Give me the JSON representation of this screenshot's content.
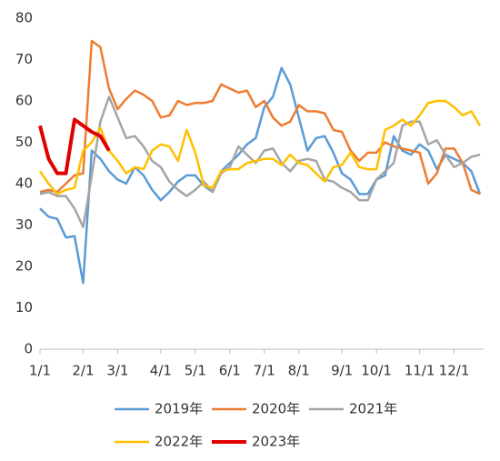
{
  "chart_data": {
    "type": "line",
    "categories": [
      "1/1",
      null,
      null,
      null,
      null,
      "2/1",
      null,
      null,
      null,
      "3/1",
      null,
      null,
      null,
      null,
      "4/1",
      null,
      null,
      null,
      "5/1",
      null,
      null,
      null,
      "6/1",
      null,
      null,
      null,
      "7/1",
      null,
      null,
      null,
      "8/1",
      null,
      null,
      null,
      null,
      "9/1",
      null,
      null,
      null,
      "10/1",
      null,
      null,
      null,
      null,
      "11/1",
      null,
      null,
      null,
      "12/1",
      null,
      null,
      null
    ],
    "series": [
      {
        "name": "2019年",
        "color": "#5b9bd5",
        "values": [
          34,
          32,
          31.5,
          27,
          27.3,
          16,
          48,
          46,
          43,
          41,
          40,
          44,
          42,
          38.5,
          36,
          38,
          40.5,
          42,
          42,
          39.5,
          38,
          43,
          45,
          47,
          49.5,
          51,
          58.5,
          61,
          68,
          64,
          56,
          48,
          51,
          51.5,
          47.5,
          42.5,
          41,
          37.5,
          37.5,
          41,
          42,
          51.5,
          48,
          47,
          49.5,
          48,
          43.5,
          47,
          46,
          45,
          43,
          37.5
        ]
      },
      {
        "name": "2020年",
        "color": "#ed7d31",
        "values": [
          38,
          38.5,
          38,
          40,
          42,
          42.5,
          74.5,
          73,
          63,
          58,
          60.5,
          62.5,
          61.5,
          60,
          56,
          56.5,
          60,
          59,
          59.5,
          59.5,
          60,
          64,
          63,
          62,
          62.5,
          58.5,
          60,
          56,
          54,
          55,
          59,
          57.5,
          57.5,
          57,
          53,
          52.5,
          48,
          45.5,
          47.5,
          47.5,
          50,
          49,
          48.5,
          48,
          47.5,
          40,
          42.5,
          48.5,
          48.5,
          45,
          38.5,
          37.5
        ]
      },
      {
        "name": "2021年",
        "color": "#a5a5a5",
        "values": [
          37.5,
          38,
          37,
          37,
          34,
          29.5,
          42,
          55,
          61,
          56,
          51,
          51.5,
          49,
          45.5,
          44,
          40.5,
          38.5,
          37,
          38.5,
          40.5,
          38,
          42.5,
          44,
          49,
          47,
          45,
          48,
          48.5,
          45,
          43,
          45.5,
          46,
          45.5,
          41,
          40.5,
          39,
          38,
          36,
          36,
          41,
          43,
          45,
          54,
          55,
          55,
          49.5,
          50.5,
          47,
          44,
          45,
          46.5,
          47
        ]
      },
      {
        "name": "2022年",
        "color": "#ffc000",
        "values": [
          43,
          40,
          37.5,
          38.5,
          39,
          48,
          50,
          53.5,
          48,
          45.5,
          42.5,
          44,
          43.5,
          48,
          49.5,
          49,
          45.5,
          53,
          47.5,
          39.5,
          39,
          43,
          43.5,
          43.5,
          45,
          45.5,
          46,
          46,
          44.5,
          47,
          45,
          44.5,
          42.5,
          40.5,
          44,
          44.5,
          47.5,
          44,
          43.5,
          43.5,
          53,
          54,
          55.5,
          54,
          56.5,
          59.5,
          60,
          60,
          58.5,
          56.5,
          57.5,
          54
        ]
      },
      {
        "name": "2023年",
        "color": "#e00000",
        "values": [
          54,
          46,
          42.5,
          42.5,
          55.5,
          54,
          52.5,
          51.5,
          48,
          null,
          null,
          null,
          null,
          null,
          null,
          null,
          null,
          null,
          null,
          null,
          null,
          null,
          null,
          null,
          null,
          null,
          null,
          null,
          null,
          null,
          null,
          null,
          null,
          null,
          null,
          null,
          null,
          null,
          null,
          null,
          null,
          null,
          null,
          null,
          null,
          null,
          null,
          null,
          null,
          null,
          null,
          null
        ]
      }
    ],
    "ylim": [
      0,
      80
    ],
    "yticks": [
      0,
      10,
      20,
      30,
      40,
      50,
      60,
      70,
      80
    ],
    "grid": false
  }
}
